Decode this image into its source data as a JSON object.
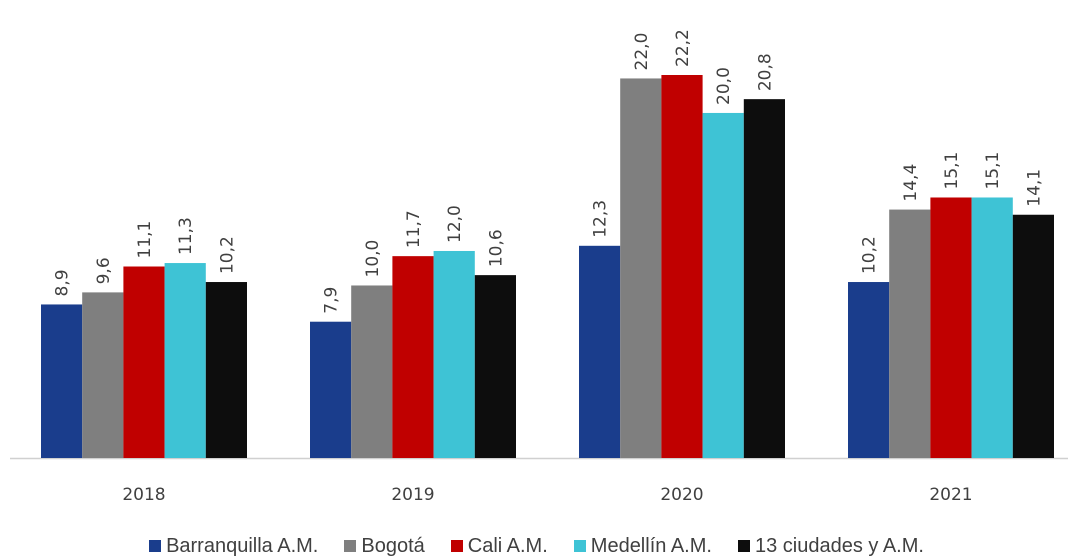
{
  "chart_data": {
    "type": "bar",
    "categories": [
      "2018",
      "2019",
      "2020",
      "2021"
    ],
    "series": [
      {
        "name": "Barranquilla A.M.",
        "color": "#1a3d8c",
        "values": [
          8.9,
          7.9,
          12.3,
          10.2
        ],
        "labels": [
          "8,9",
          "7,9",
          "12,3",
          "10,2"
        ]
      },
      {
        "name": "Bogotá",
        "color": "#7f7f7f",
        "values": [
          9.6,
          10.0,
          22.0,
          14.4
        ],
        "labels": [
          "9,6",
          "10,0",
          "22,0",
          "14,4"
        ]
      },
      {
        "name": "Cali A.M.",
        "color": "#c00000",
        "values": [
          11.1,
          11.7,
          22.2,
          15.1
        ],
        "labels": [
          "11,1",
          "11,7",
          "22,2",
          "15,1"
        ]
      },
      {
        "name": "Medellín A.M.",
        "color": "#3ec3d5",
        "values": [
          11.3,
          12.0,
          20.0,
          15.1
        ],
        "labels": [
          "11,3",
          "12,0",
          "20,0",
          "15,1"
        ]
      },
      {
        "name": "13 ciudades y A.M.",
        "color": "#0d0d0d",
        "values": [
          10.2,
          10.6,
          20.8,
          14.1
        ],
        "labels": [
          "10,2",
          "10,6",
          "20,8",
          "14,1"
        ]
      }
    ],
    "ylim": [
      0,
      22.2
    ],
    "grid": false,
    "legend_position": "bottom",
    "title": "",
    "xlabel": "",
    "ylabel": ""
  }
}
